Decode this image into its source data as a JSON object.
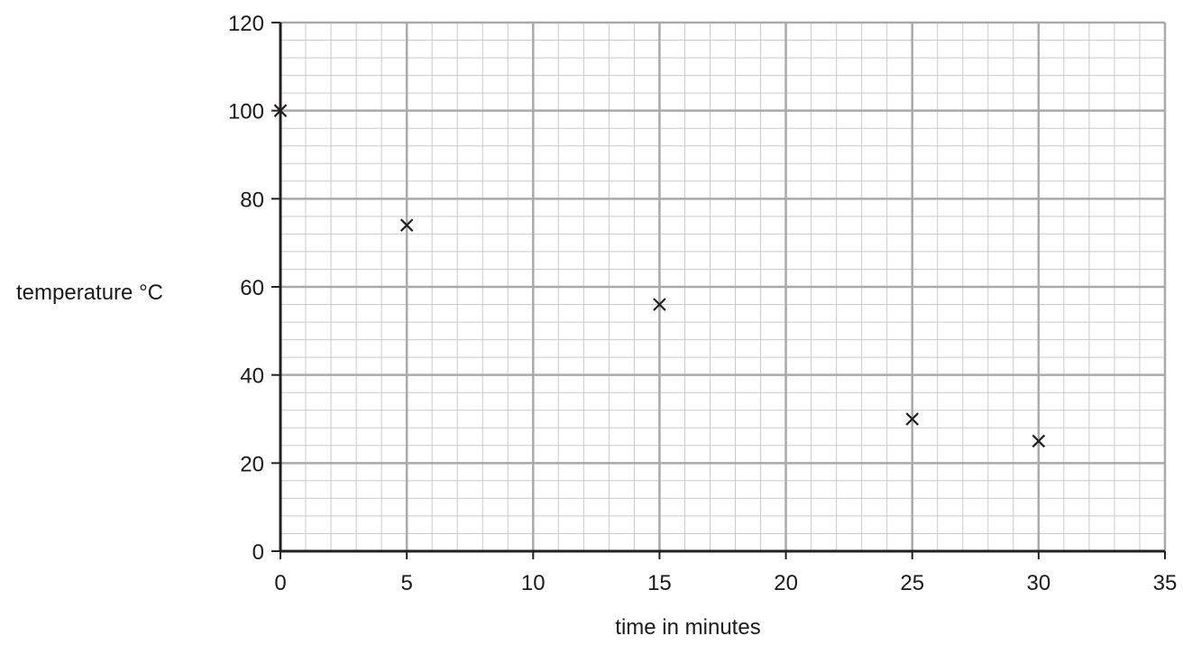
{
  "chart_data": {
    "type": "scatter",
    "title": "",
    "xlabel": "time in minutes",
    "ylabel": "temperature °C",
    "xlim": [
      0,
      35
    ],
    "ylim": [
      0,
      120
    ],
    "x_ticks": [
      0,
      5,
      10,
      15,
      20,
      25,
      30,
      35
    ],
    "y_ticks": [
      0,
      20,
      40,
      60,
      80,
      100,
      120
    ],
    "x_minor_step": 1,
    "y_minor_step": 4,
    "grid": true,
    "marker": "x",
    "points": [
      {
        "x": 0,
        "y": 100
      },
      {
        "x": 5,
        "y": 74
      },
      {
        "x": 15,
        "y": 56
      },
      {
        "x": 25,
        "y": 30
      },
      {
        "x": 30,
        "y": 25
      }
    ],
    "colors": {
      "major_grid": "#a7a9ac",
      "minor_grid": "#c8c9cb",
      "axis": "#231f20",
      "marker": "#231f20"
    }
  }
}
